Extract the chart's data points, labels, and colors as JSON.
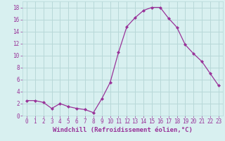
{
  "x": [
    0,
    1,
    2,
    3,
    4,
    5,
    6,
    7,
    8,
    9,
    10,
    11,
    12,
    13,
    14,
    15,
    16,
    17,
    18,
    19,
    20,
    21,
    22,
    23
  ],
  "y": [
    2.5,
    2.5,
    2.2,
    1.2,
    2.0,
    1.5,
    1.2,
    1.0,
    0.5,
    2.8,
    5.5,
    10.5,
    14.8,
    16.3,
    17.5,
    18.0,
    18.0,
    16.2,
    14.7,
    11.8,
    10.3,
    9.0,
    7.0,
    5.0
  ],
  "line_color": "#993399",
  "marker": "D",
  "marker_size": 2,
  "bg_color": "#d8f0f0",
  "grid_color": "#b8d8d8",
  "tick_color": "#993399",
  "label_color": "#993399",
  "xlabel": "Windchill (Refroidissement éolien,°C)",
  "xlim": [
    -0.5,
    23.5
  ],
  "ylim": [
    0,
    19
  ],
  "yticks": [
    0,
    2,
    4,
    6,
    8,
    10,
    12,
    14,
    16,
    18
  ],
  "xticks": [
    0,
    1,
    2,
    3,
    4,
    5,
    6,
    7,
    8,
    9,
    10,
    11,
    12,
    13,
    14,
    15,
    16,
    17,
    18,
    19,
    20,
    21,
    22,
    23
  ],
  "tick_fontsize": 5.5,
  "xlabel_fontsize": 6.5
}
